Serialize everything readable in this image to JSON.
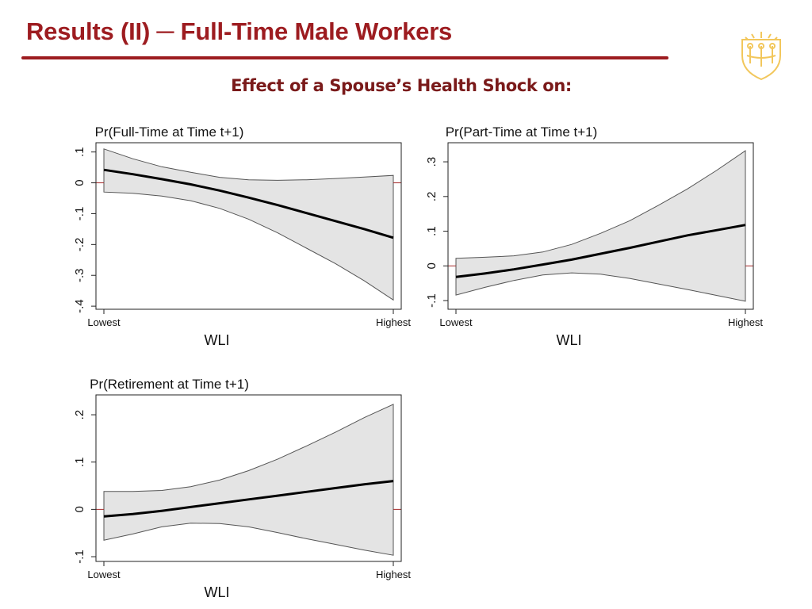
{
  "slide": {
    "title": "Results (II) ─ Full-Time Male Workers",
    "subtitle": "Effect of a Spouse’s Health Shock on:",
    "title_color": "#9d1c20",
    "rule_color": "#9d1c20",
    "logo_color": "#f2c75c",
    "logo_icon": "university-seal-icon"
  },
  "chart_data": [
    {
      "type": "line",
      "title": "Pr(Full-Time at Time t+1)",
      "xlabel": "WLI",
      "ylabel": "",
      "x_tick_labels": [
        "Lowest",
        "Highest"
      ],
      "x": [
        0,
        0.1,
        0.2,
        0.3,
        0.4,
        0.5,
        0.6,
        0.7,
        0.8,
        0.9,
        1.0
      ],
      "ylim": [
        -0.41,
        0.13
      ],
      "yticks": [
        0.1,
        0,
        -0.1,
        -0.2,
        -0.3,
        -0.4
      ],
      "ytick_labels": [
        ".1",
        "0",
        "-.1",
        "-.2",
        "-.3",
        "-.4"
      ],
      "zero_line": true,
      "series": [
        {
          "role": "estimate",
          "values": [
            0.042,
            0.028,
            0.012,
            -0.005,
            -0.025,
            -0.048,
            -0.072,
            -0.098,
            -0.124,
            -0.15,
            -0.178
          ]
        },
        {
          "role": "upper",
          "values": [
            0.11,
            0.078,
            0.052,
            0.034,
            0.018,
            0.01,
            0.008,
            0.01,
            0.014,
            0.019,
            0.024
          ]
        },
        {
          "role": "lower",
          "values": [
            -0.03,
            -0.034,
            -0.043,
            -0.058,
            -0.083,
            -0.118,
            -0.162,
            -0.212,
            -0.262,
            -0.318,
            -0.38
          ]
        }
      ],
      "grid": false
    },
    {
      "type": "line",
      "title": "Pr(Part-Time at Time t+1)",
      "xlabel": "WLI",
      "ylabel": "",
      "x_tick_labels": [
        "Lowest",
        "Highest"
      ],
      "x": [
        0,
        0.1,
        0.2,
        0.3,
        0.4,
        0.5,
        0.6,
        0.7,
        0.8,
        0.9,
        1.0
      ],
      "ylim": [
        -0.125,
        0.355
      ],
      "yticks": [
        0.3,
        0.2,
        0.1,
        0,
        -0.1
      ],
      "ytick_labels": [
        ".3",
        ".2",
        ".1",
        "0",
        "-.1"
      ],
      "zero_line": true,
      "series": [
        {
          "role": "estimate",
          "values": [
            -0.032,
            -0.022,
            -0.01,
            0.004,
            0.018,
            0.035,
            0.052,
            0.07,
            0.088,
            0.103,
            0.118
          ]
        },
        {
          "role": "upper",
          "values": [
            0.022,
            0.025,
            0.029,
            0.04,
            0.062,
            0.094,
            0.13,
            0.175,
            0.222,
            0.275,
            0.332
          ]
        },
        {
          "role": "lower",
          "values": [
            -0.084,
            -0.062,
            -0.042,
            -0.026,
            -0.02,
            -0.024,
            -0.036,
            -0.052,
            -0.068,
            -0.085,
            -0.102
          ]
        }
      ],
      "grid": false
    },
    {
      "type": "line",
      "title": "Pr(Retirement at Time t+1)",
      "xlabel": "WLI",
      "ylabel": "",
      "x_tick_labels": [
        "Lowest",
        "Highest"
      ],
      "x": [
        0,
        0.1,
        0.2,
        0.3,
        0.4,
        0.5,
        0.6,
        0.7,
        0.8,
        0.9,
        1.0
      ],
      "ylim": [
        -0.11,
        0.242
      ],
      "yticks": [
        0.2,
        0.1,
        0,
        -0.1
      ],
      "ytick_labels": [
        ".2",
        ".1",
        "0",
        "-.1"
      ],
      "zero_line": true,
      "series": [
        {
          "role": "estimate",
          "values": [
            -0.015,
            -0.01,
            -0.003,
            0.005,
            0.013,
            0.021,
            0.029,
            0.037,
            0.045,
            0.053,
            0.06
          ]
        },
        {
          "role": "upper",
          "values": [
            0.038,
            0.038,
            0.04,
            0.048,
            0.062,
            0.082,
            0.106,
            0.134,
            0.163,
            0.194,
            0.222
          ]
        },
        {
          "role": "lower",
          "values": [
            -0.065,
            -0.052,
            -0.037,
            -0.029,
            -0.03,
            -0.037,
            -0.049,
            -0.062,
            -0.074,
            -0.086,
            -0.097
          ]
        }
      ],
      "grid": false
    }
  ]
}
